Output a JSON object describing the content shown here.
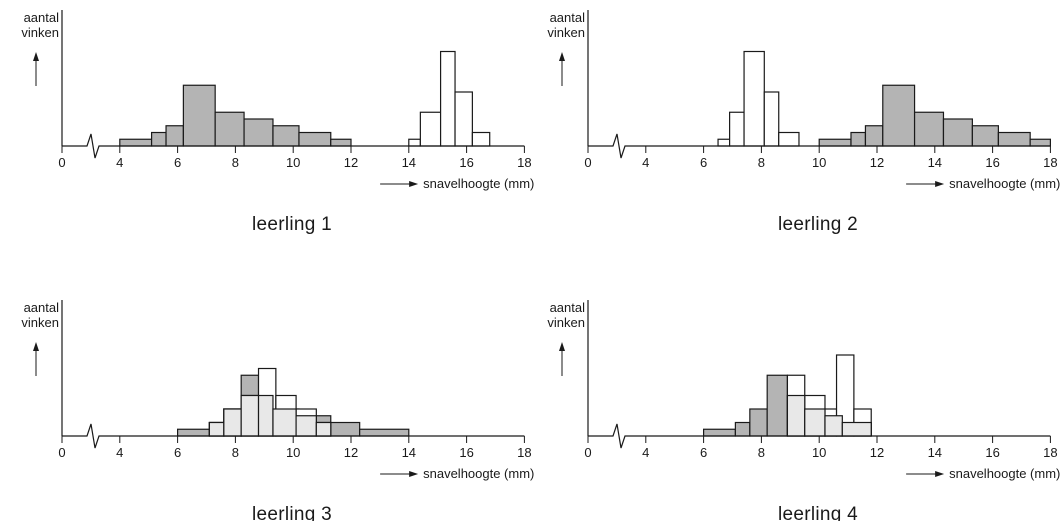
{
  "chart_data": [
    {
      "type": "histogram",
      "caption": "leerling 1",
      "ylabel_lines": [
        "aantal",
        "vinken"
      ],
      "xlabel": "snavelhoogte (mm)",
      "xticks": [
        "0",
        "4",
        "6",
        "8",
        "10",
        "12",
        "14",
        "16",
        "18"
      ],
      "axis_break": true,
      "series": [
        {
          "fill": "#b4b4b4",
          "bins": [
            [
              4,
              5.1,
              1
            ],
            [
              5.1,
              5.6,
              2
            ],
            [
              5.6,
              6.2,
              3
            ],
            [
              6.2,
              7.3,
              9
            ],
            [
              7.3,
              8.3,
              5
            ],
            [
              8.3,
              9.3,
              4
            ],
            [
              9.3,
              10.2,
              3
            ],
            [
              10.2,
              11.3,
              2
            ],
            [
              11.3,
              12,
              1
            ]
          ]
        },
        {
          "fill": "#ffffff",
          "bins": [
            [
              14,
              14.4,
              1
            ],
            [
              14.4,
              15.1,
              5
            ],
            [
              15.1,
              15.6,
              14
            ],
            [
              15.6,
              16.2,
              8
            ],
            [
              16.2,
              16.8,
              2
            ]
          ]
        }
      ]
    },
    {
      "type": "histogram",
      "caption": "leerling 2",
      "ylabel_lines": [
        "aantal",
        "vinken"
      ],
      "xlabel": "snavelhoogte (mm)",
      "xticks": [
        "0",
        "4",
        "6",
        "8",
        "10",
        "12",
        "14",
        "16",
        "18"
      ],
      "axis_break": true,
      "series": [
        {
          "fill": "#ffffff",
          "bins": [
            [
              6.5,
              6.9,
              1
            ],
            [
              6.9,
              7.4,
              5
            ],
            [
              7.4,
              8.1,
              14
            ],
            [
              8.1,
              8.6,
              8
            ],
            [
              8.6,
              9.3,
              2
            ]
          ]
        },
        {
          "fill": "#b4b4b4",
          "bins": [
            [
              10,
              11.1,
              1
            ],
            [
              11.1,
              11.6,
              2
            ],
            [
              11.6,
              12.2,
              3
            ],
            [
              12.2,
              13.3,
              9
            ],
            [
              13.3,
              14.3,
              5
            ],
            [
              14.3,
              15.3,
              4
            ],
            [
              15.3,
              16.2,
              3
            ],
            [
              16.2,
              17.3,
              2
            ],
            [
              17.3,
              18,
              1
            ]
          ]
        }
      ]
    },
    {
      "type": "histogram",
      "caption": "leerling 3",
      "ylabel_lines": [
        "aantal",
        "vinken"
      ],
      "xlabel": "snavelhoogte (mm)",
      "xticks": [
        "0",
        "4",
        "6",
        "8",
        "10",
        "12",
        "14",
        "16",
        "18"
      ],
      "axis_break": true,
      "series": [
        {
          "fill": "#b4b4b4",
          "bins": [
            [
              6,
              7.1,
              1
            ],
            [
              7.1,
              7.6,
              2
            ],
            [
              7.6,
              8.2,
              4
            ],
            [
              8.2,
              8.8,
              9
            ],
            [
              8.8,
              9.3,
              6
            ],
            [
              9.3,
              10.2,
              4
            ],
            [
              10.2,
              11.3,
              3
            ],
            [
              11.3,
              12.3,
              2
            ],
            [
              12.3,
              14,
              1
            ]
          ]
        },
        {
          "fill": "#ffffff",
          "bins": [
            [
              7.1,
              7.6,
              2
            ],
            [
              7.6,
              8.2,
              4
            ],
            [
              8.2,
              8.8,
              6
            ],
            [
              8.8,
              9.4,
              10
            ],
            [
              9.4,
              10.1,
              6
            ],
            [
              10.1,
              10.8,
              4
            ],
            [
              10.8,
              11.3,
              2
            ]
          ]
        },
        {
          "fill": "#e8e8e8",
          "bins": [
            [
              7.1,
              7.6,
              2
            ],
            [
              7.6,
              8.2,
              4
            ],
            [
              8.2,
              8.8,
              6
            ],
            [
              8.8,
              9.3,
              6
            ],
            [
              9.3,
              10.1,
              4
            ],
            [
              10.1,
              10.8,
              3
            ],
            [
              10.8,
              11.3,
              2
            ]
          ]
        }
      ]
    },
    {
      "type": "histogram",
      "caption": "leerling 4",
      "ylabel_lines": [
        "aantal",
        "vinken"
      ],
      "xlabel": "snavelhoogte (mm)",
      "xticks": [
        "0",
        "4",
        "6",
        "8",
        "10",
        "12",
        "14",
        "16",
        "18"
      ],
      "axis_break": true,
      "series": [
        {
          "fill": "#b4b4b4",
          "bins": [
            [
              6,
              7.1,
              1
            ],
            [
              7.1,
              7.6,
              2
            ],
            [
              7.6,
              8.2,
              4
            ],
            [
              8.2,
              8.9,
              9
            ],
            [
              8.9,
              9.5,
              6
            ],
            [
              9.5,
              10.2,
              4
            ],
            [
              10.2,
              10.8,
              3
            ],
            [
              10.8,
              11.8,
              2
            ]
          ]
        },
        {
          "fill": "#ffffff",
          "bins": [
            [
              8.9,
              9.5,
              9
            ],
            [
              9.5,
              10.2,
              6
            ],
            [
              10.2,
              10.6,
              4
            ],
            [
              10.6,
              11.2,
              12
            ],
            [
              11.2,
              11.8,
              4
            ]
          ]
        },
        {
          "fill": "#e8e8e8",
          "bins": [
            [
              8.9,
              9.5,
              6
            ],
            [
              9.5,
              10.2,
              4
            ],
            [
              10.2,
              10.8,
              3
            ],
            [
              10.8,
              11.8,
              2
            ]
          ]
        }
      ]
    }
  ]
}
